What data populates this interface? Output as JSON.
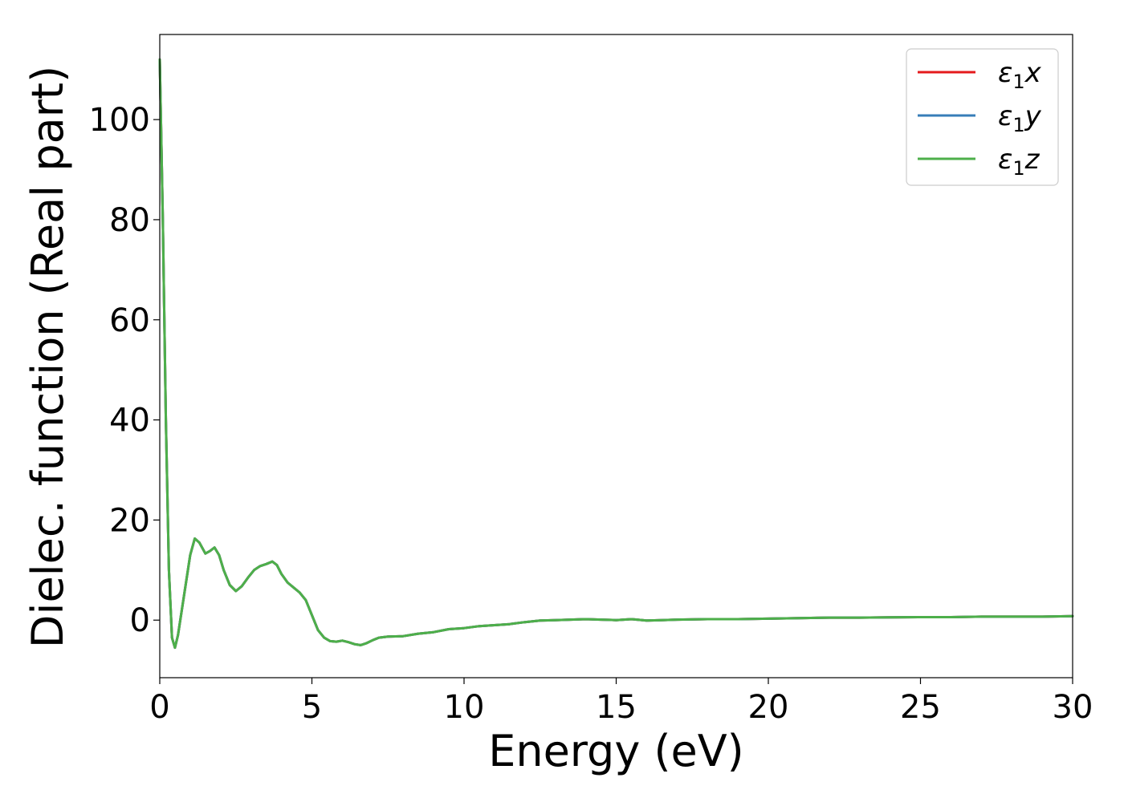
{
  "chart_data": {
    "type": "line",
    "title": "",
    "xlabel": "Energy (eV)",
    "ylabel": "Dielec. function (Real part)",
    "xlim": [
      0,
      30
    ],
    "ylim": [
      -11.5,
      117
    ],
    "xticks": [
      0,
      5,
      10,
      15,
      20,
      25,
      30
    ],
    "yticks": [
      0,
      20,
      40,
      60,
      80,
      100
    ],
    "grid": false,
    "legend_position": "top-right",
    "x": [
      0.0,
      0.1,
      0.2,
      0.3,
      0.4,
      0.5,
      0.6,
      0.8,
      1.0,
      1.15,
      1.3,
      1.5,
      1.65,
      1.8,
      1.95,
      2.1,
      2.3,
      2.5,
      2.7,
      2.9,
      3.1,
      3.3,
      3.5,
      3.7,
      3.85,
      4.0,
      4.2,
      4.4,
      4.6,
      4.8,
      5.0,
      5.2,
      5.4,
      5.6,
      5.8,
      6.0,
      6.2,
      6.4,
      6.6,
      6.8,
      7.0,
      7.2,
      7.5,
      8.0,
      8.5,
      9.0,
      9.5,
      10.0,
      10.5,
      11.0,
      11.5,
      12.0,
      12.5,
      13.0,
      13.5,
      14.0,
      14.5,
      15.0,
      15.5,
      16.0,
      16.5,
      17.0,
      18.0,
      19.0,
      20.0,
      21.0,
      22.0,
      23.0,
      24.0,
      25.0,
      26.0,
      27.0,
      28.0,
      29.0,
      30.0
    ],
    "series": [
      {
        "name": "$\\varepsilon_1 x$",
        "legend_main": "ε",
        "legend_sub": "1",
        "legend_suffix": "x",
        "color": "#e41a1c",
        "values": [
          112,
          80,
          40,
          10,
          -3.5,
          -5.5,
          -3,
          5,
          13,
          16.3,
          15.5,
          13.3,
          13.8,
          14.5,
          13,
          10,
          7,
          5.8,
          6.8,
          8.5,
          10,
          10.8,
          11.2,
          11.7,
          11,
          9.2,
          7.5,
          6.5,
          5.5,
          4,
          1,
          -2,
          -3.5,
          -4.2,
          -4.3,
          -4.1,
          -4.4,
          -4.8,
          -5,
          -4.6,
          -4,
          -3.5,
          -3.3,
          -3.2,
          -2.7,
          -2.4,
          -1.8,
          -1.6,
          -1.2,
          -1.0,
          -0.8,
          -0.4,
          -0.1,
          0.0,
          0.1,
          0.2,
          0.1,
          0.0,
          0.2,
          -0.1,
          0.0,
          0.1,
          0.2,
          0.2,
          0.3,
          0.4,
          0.5,
          0.5,
          0.55,
          0.6,
          0.6,
          0.7,
          0.7,
          0.7,
          0.8
        ]
      },
      {
        "name": "$\\varepsilon_1 y$",
        "legend_main": "ε",
        "legend_sub": "1",
        "legend_suffix": "y",
        "color": "#377eb8",
        "values": [
          112,
          80,
          40,
          10,
          -3.5,
          -5.5,
          -3,
          5,
          13,
          16.3,
          15.5,
          13.3,
          13.8,
          14.5,
          13,
          10,
          7,
          5.8,
          6.8,
          8.5,
          10,
          10.8,
          11.2,
          11.7,
          11,
          9.2,
          7.5,
          6.5,
          5.5,
          4,
          1,
          -2,
          -3.5,
          -4.2,
          -4.3,
          -4.1,
          -4.4,
          -4.8,
          -5,
          -4.6,
          -4,
          -3.5,
          -3.3,
          -3.2,
          -2.7,
          -2.4,
          -1.8,
          -1.6,
          -1.2,
          -1.0,
          -0.8,
          -0.4,
          -0.1,
          0.0,
          0.1,
          0.2,
          0.1,
          0.0,
          0.2,
          -0.1,
          0.0,
          0.1,
          0.2,
          0.2,
          0.3,
          0.4,
          0.5,
          0.5,
          0.55,
          0.6,
          0.6,
          0.7,
          0.7,
          0.7,
          0.8
        ]
      },
      {
        "name": "$\\varepsilon_1 z$",
        "legend_main": "ε",
        "legend_sub": "1",
        "legend_suffix": "z",
        "color": "#4daf4a",
        "values": [
          112,
          80,
          40,
          10,
          -3.5,
          -5.5,
          -3,
          5,
          13,
          16.3,
          15.5,
          13.3,
          13.8,
          14.5,
          13,
          10,
          7,
          5.8,
          6.8,
          8.5,
          10,
          10.8,
          11.2,
          11.7,
          11,
          9.2,
          7.5,
          6.5,
          5.5,
          4,
          1,
          -2,
          -3.5,
          -4.2,
          -4.3,
          -4.1,
          -4.4,
          -4.8,
          -5,
          -4.6,
          -4,
          -3.5,
          -3.3,
          -3.2,
          -2.7,
          -2.4,
          -1.8,
          -1.6,
          -1.2,
          -1.0,
          -0.8,
          -0.4,
          -0.1,
          0.0,
          0.1,
          0.2,
          0.1,
          0.0,
          0.2,
          -0.1,
          0.0,
          0.1,
          0.2,
          0.2,
          0.3,
          0.4,
          0.5,
          0.5,
          0.55,
          0.6,
          0.6,
          0.7,
          0.7,
          0.7,
          0.8
        ]
      }
    ]
  }
}
